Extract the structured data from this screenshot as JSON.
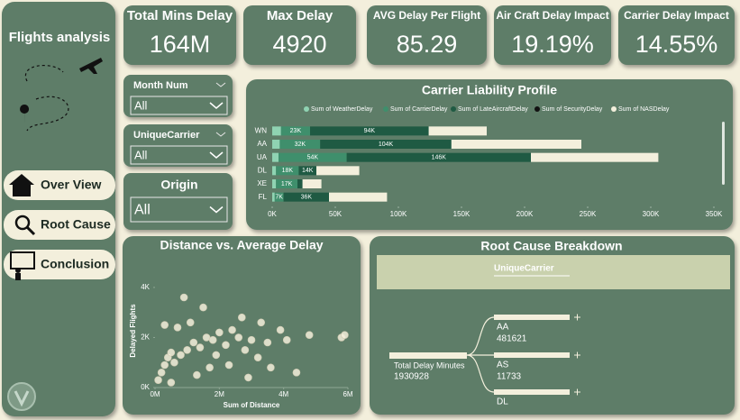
{
  "sidebar": {
    "title": "Flights analysis",
    "nav": [
      "Over View",
      "Root Cause",
      "Conclusion"
    ]
  },
  "kpis": [
    {
      "title": "Total Mins Delay",
      "value": "164M"
    },
    {
      "title": "Max Delay",
      "value": "4920"
    },
    {
      "title": "AVG Delay Per Flight",
      "value": "85.29"
    },
    {
      "title": "Air Craft Delay Impact",
      "value": "19.19%"
    },
    {
      "title": "Carrier Delay Impact",
      "value": "14.55%"
    }
  ],
  "filters": [
    {
      "label": "Month Num",
      "value": "All"
    },
    {
      "label": "UniqueCarrier",
      "value": "All"
    },
    {
      "label": "Origin",
      "value": "All"
    }
  ],
  "chart_data": [
    {
      "type": "bar",
      "orientation": "horizontal",
      "stacked": true,
      "title": "Carrier Liability Profile",
      "categories": [
        "WN",
        "AA",
        "UA",
        "DL",
        "XE",
        "FL"
      ],
      "series": [
        {
          "name": "Sum of WeatherDelay",
          "color": "#8fd3b2",
          "values": [
            7000,
            6000,
            5000,
            3000,
            3000,
            2000
          ],
          "value_labels": [
            null,
            null,
            null,
            null,
            null,
            null
          ]
        },
        {
          "name": "Sum of CarrierDelay",
          "color": "#3f8f6c",
          "values": [
            23000,
            32000,
            54000,
            18000,
            17000,
            7000
          ],
          "value_labels": [
            "23K",
            "32K",
            "54K",
            "18K",
            "17K",
            "7K"
          ]
        },
        {
          "name": "Sum of LateAircraftDelay",
          "color": "#1f5a43",
          "values": [
            94000,
            104000,
            146000,
            14000,
            4000,
            36000
          ],
          "value_labels": [
            "94K",
            "104K",
            "146K",
            "14K",
            null,
            "36K"
          ]
        },
        {
          "name": "Sum of SecurityDelay",
          "color": "#111111",
          "values": [
            0,
            0,
            0,
            0,
            0,
            0
          ],
          "value_labels": [
            null,
            null,
            null,
            null,
            null,
            null
          ]
        },
        {
          "name": "Sum of NASDelay",
          "color": "#f3efdc",
          "values": [
            46000,
            103000,
            101000,
            34000,
            15000,
            46000
          ],
          "value_labels": [
            null,
            null,
            null,
            null,
            null,
            null
          ]
        }
      ],
      "xlim": [
        0,
        350000
      ],
      "xticks": [
        {
          "value": 0,
          "label": "0K"
        },
        {
          "value": 50000,
          "label": "50K"
        },
        {
          "value": 100000,
          "label": "100K"
        },
        {
          "value": 150000,
          "label": "150K"
        },
        {
          "value": 200000,
          "label": "200K"
        },
        {
          "value": 250000,
          "label": "250K"
        },
        {
          "value": 300000,
          "label": "300K"
        },
        {
          "value": 350000,
          "label": "350K"
        }
      ]
    },
    {
      "type": "scatter",
      "title": "Distance vs. Average Delay",
      "x_label": "Sum of Distance",
      "y_label": "Delayed Flights",
      "color": "#f3efdc",
      "x": [
        100000,
        200000,
        300000,
        400000,
        500000,
        600000,
        800000,
        1000000,
        1200000,
        1400000,
        1600000,
        1800000,
        2000000,
        2200000,
        2400000,
        2600000,
        2800000,
        3000000,
        3200000,
        3500000,
        3900000,
        4100000,
        4800000,
        5800000,
        700000,
        1100000,
        1500000,
        900000,
        2700000,
        3300000,
        300000,
        1900000,
        2300000,
        3600000,
        4400000,
        5900000,
        1300000,
        500000,
        2900000,
        1700000
      ],
      "values": [
        300,
        600,
        900,
        1200,
        1400,
        1000,
        1300,
        1500,
        1800,
        1600,
        2000,
        1900,
        2200,
        1700,
        2300,
        2000,
        1500,
        1900,
        1200,
        1800,
        2300,
        1900,
        2100,
        2000,
        2400,
        2600,
        3200,
        3600,
        2800,
        2600,
        2500,
        1300,
        900,
        800,
        600,
        2100,
        500,
        200,
        400,
        800
      ],
      "xlim": [
        0,
        6000000
      ],
      "ylim": [
        0,
        4500
      ],
      "xticks": [
        {
          "value": 0,
          "label": "0M"
        },
        {
          "value": 2000000,
          "label": "2M"
        },
        {
          "value": 4000000,
          "label": "4M"
        },
        {
          "value": 6000000,
          "label": "6M"
        }
      ],
      "yticks": [
        {
          "value": 0,
          "label": "0K"
        },
        {
          "value": 2000,
          "label": "2K"
        },
        {
          "value": 4000,
          "label": "4K"
        }
      ]
    }
  ],
  "decomposition": {
    "title": "Root Cause Breakdown",
    "field": "UniqueCarrier",
    "root_label": "Total Delay Minutes",
    "root_value": "1930928",
    "nodes": [
      {
        "label": "AA",
        "value": "481621"
      },
      {
        "label": "AS",
        "value": "11733"
      },
      {
        "label": "DL"
      }
    ]
  }
}
